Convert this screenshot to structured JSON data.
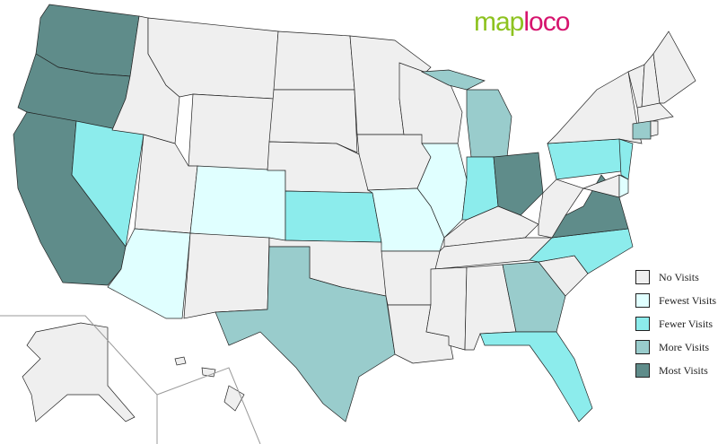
{
  "logo": {
    "part1": "map",
    "part2": "loco"
  },
  "legend": [
    {
      "label": "No Visits",
      "color": "#efefef",
      "key": "none"
    },
    {
      "label": "Fewest Visits",
      "color": "#e0ffff",
      "key": "fewest"
    },
    {
      "label": "Fewer Visits",
      "color": "#8cecec",
      "key": "fewer"
    },
    {
      "label": "More Visits",
      "color": "#99cccc",
      "key": "more"
    },
    {
      "label": "Most Visits",
      "color": "#5f8c8a",
      "key": "most"
    }
  ],
  "visits": {
    "most": [
      "WA",
      "OR",
      "CA",
      "OH",
      "VA"
    ],
    "more": [
      "MI",
      "MIU",
      "TX",
      "GA",
      "CT"
    ],
    "fewer": [
      "NV",
      "KS",
      "IN",
      "PA",
      "NJ",
      "NC",
      "FL"
    ],
    "fewest": [
      "AZ",
      "CO",
      "MO",
      "IL",
      "DE"
    ]
  }
}
